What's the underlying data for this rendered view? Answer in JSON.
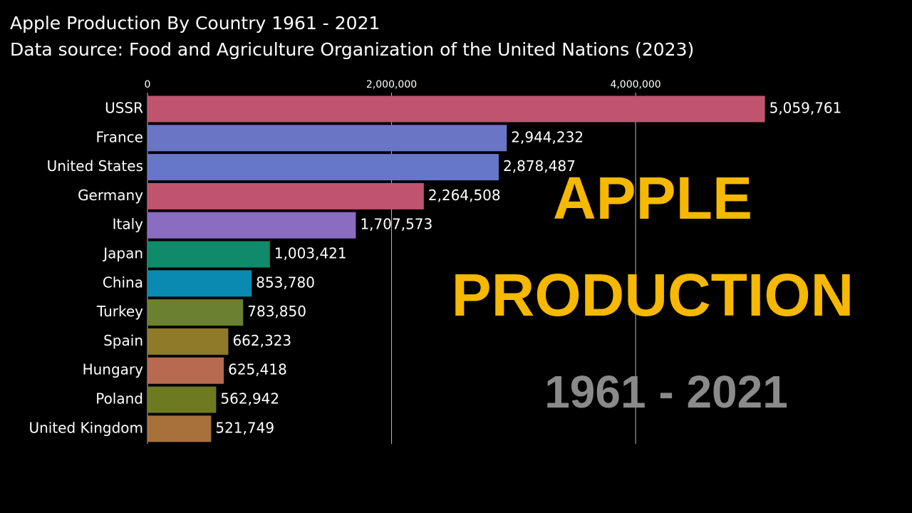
{
  "chart_data": {
    "type": "hbar",
    "title": "Apple Production By Country 1961 - 2021",
    "subtitle": "Data source: Food and Agriculture Organization of the United Nations (2023)",
    "annotations": [
      "APPLE",
      "PRODUCTION",
      "1961 - 2021"
    ],
    "categories": [
      "USSR",
      "France",
      "United States",
      "Germany",
      "Italy",
      "Japan",
      "China",
      "Turkey",
      "Spain",
      "Hungary",
      "Poland",
      "United Kingdom"
    ],
    "values": [
      5059761,
      2944232,
      2878487,
      2264508,
      1707573,
      1003421,
      853780,
      783850,
      662323,
      625418,
      562942,
      521749
    ],
    "value_labels": [
      "5,059,761",
      "2,944,232",
      "2,878,487",
      "2,264,508",
      "1,707,573",
      "1,003,421",
      "853,780",
      "783,850",
      "662,323",
      "625,418",
      "562,942",
      "521,749"
    ],
    "colors": [
      "#c0546e",
      "#6a75c6",
      "#6676c8",
      "#c0546e",
      "#8a6cc0",
      "#0f8a6a",
      "#0a8ab0",
      "#6b8030",
      "#8f7a2a",
      "#b86a50",
      "#6e7a22",
      "#a8703a"
    ],
    "xlim": [
      0,
      5500000
    ],
    "xticks": [
      0,
      {
        "value": 2000000,
        "label": "2,000,000"
      },
      {
        "value": 4000000,
        "label": "4,000,000"
      }
    ],
    "grid": true
  }
}
